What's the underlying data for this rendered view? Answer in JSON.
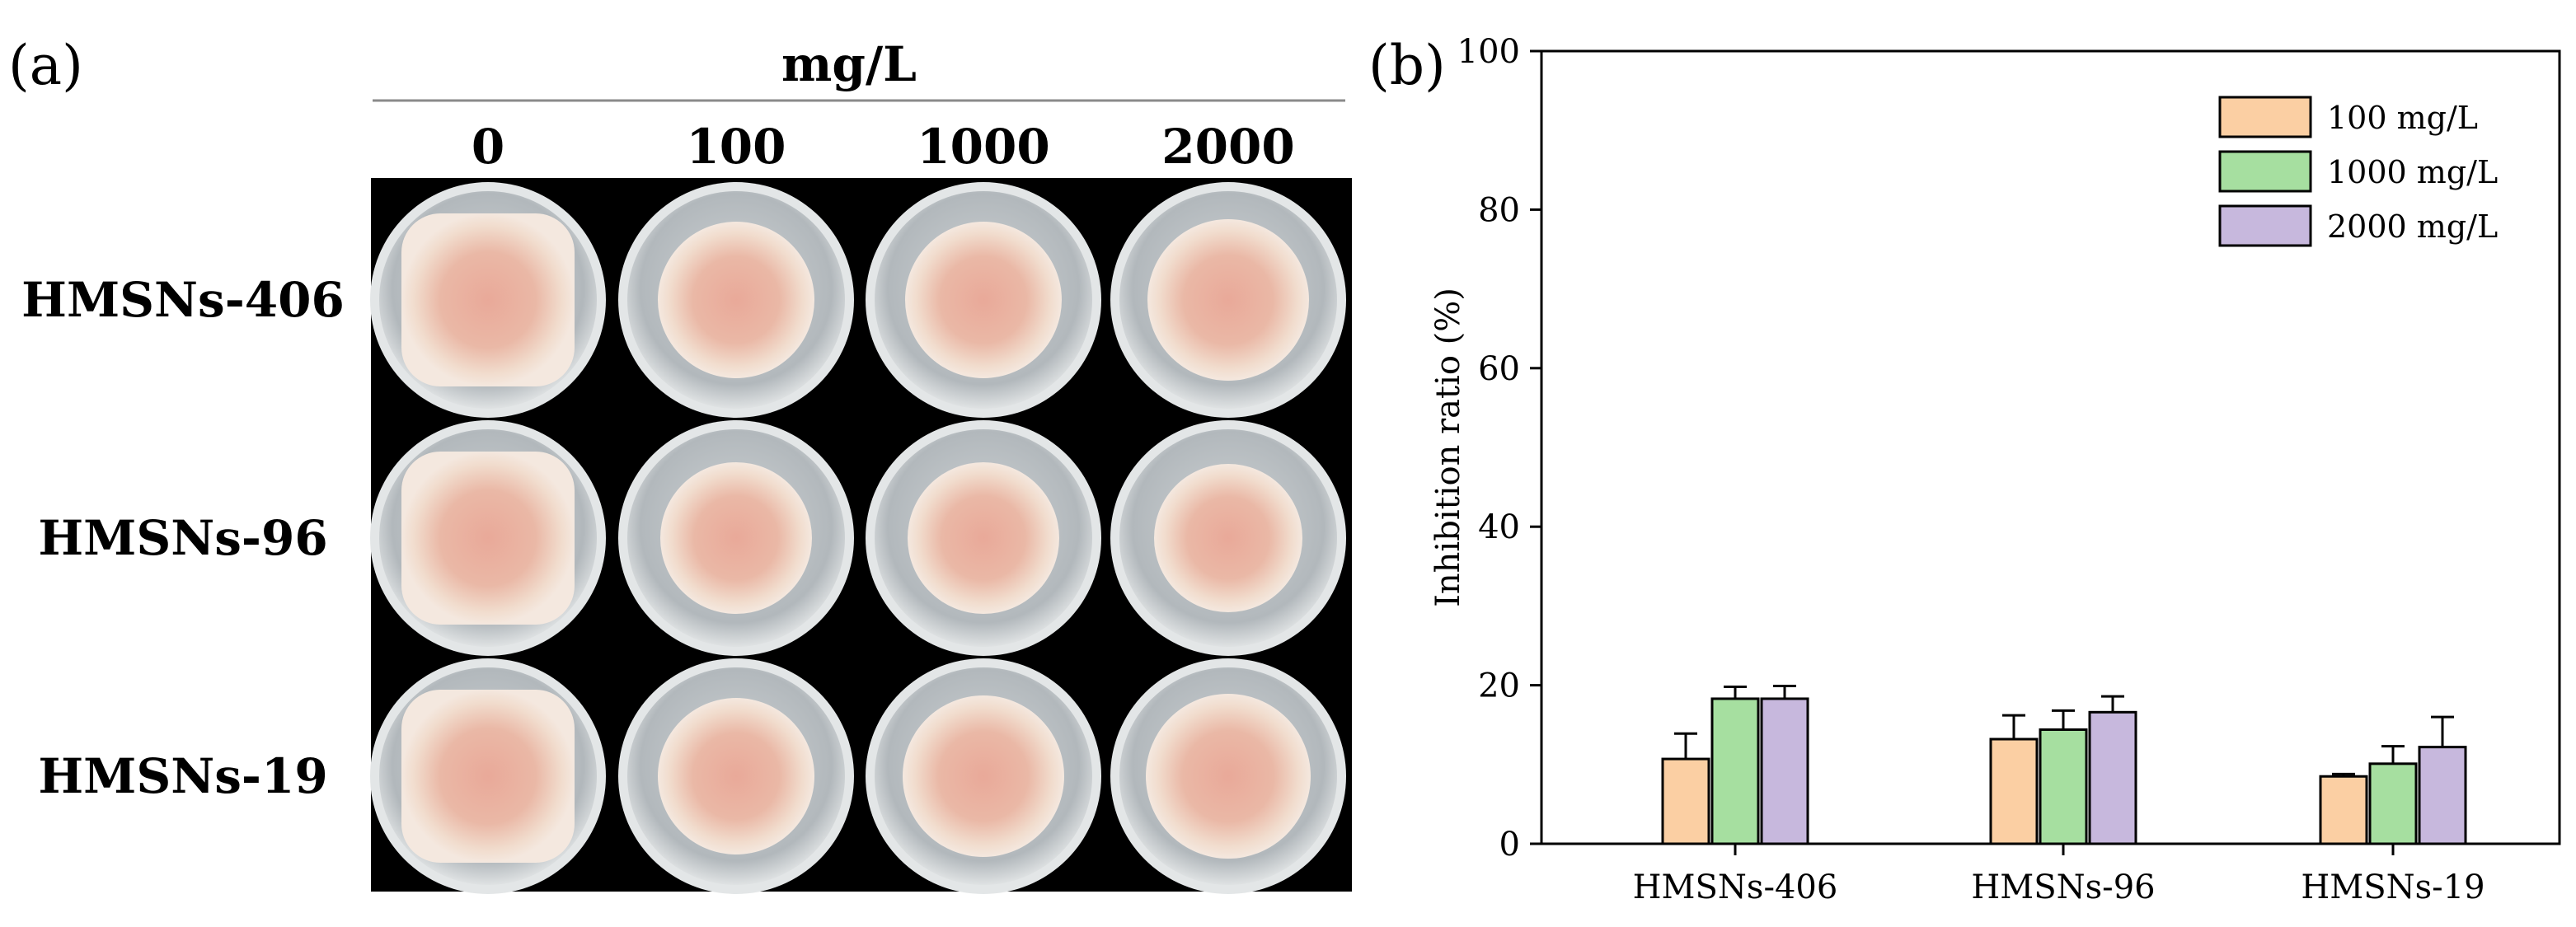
{
  "panel_a": {
    "label": "(a)",
    "unit": "mg/L",
    "concentrations": [
      "0",
      "100",
      "1000",
      "2000"
    ],
    "samples": [
      "HMSNs-406",
      "HMSNs-96",
      "HMSNs-19"
    ],
    "colors": {
      "background": "#000000",
      "agar": "#b9bfc3",
      "colony": "#e8b3a1",
      "colony_edge": "#f0e2d8"
    }
  },
  "panel_b": {
    "label": "(b)"
  },
  "chart_data": {
    "type": "bar",
    "title": "",
    "xlabel": "",
    "ylabel": "Inhibition ratio (%)",
    "ylim": [
      0,
      100
    ],
    "yticks": [
      0,
      20,
      40,
      60,
      80,
      100
    ],
    "grid": false,
    "legend_position": "top-right",
    "categories": [
      "HMSNs-406",
      "HMSNs-96",
      "HMSNs-19"
    ],
    "series": [
      {
        "name": "100 mg/L",
        "color": "#fbcfa3",
        "values": [
          10.7,
          13.2,
          8.5
        ],
        "errors": [
          3.2,
          3.0,
          0.3
        ]
      },
      {
        "name": "1000 mg/L",
        "color": "#a6dfa0",
        "values": [
          18.3,
          14.4,
          10.1
        ],
        "errors": [
          1.5,
          2.4,
          2.2
        ]
      },
      {
        "name": "2000 mg/L",
        "color": "#c7b8dd",
        "values": [
          18.3,
          16.6,
          12.2
        ],
        "errors": [
          1.6,
          2.0,
          3.8
        ]
      }
    ]
  }
}
